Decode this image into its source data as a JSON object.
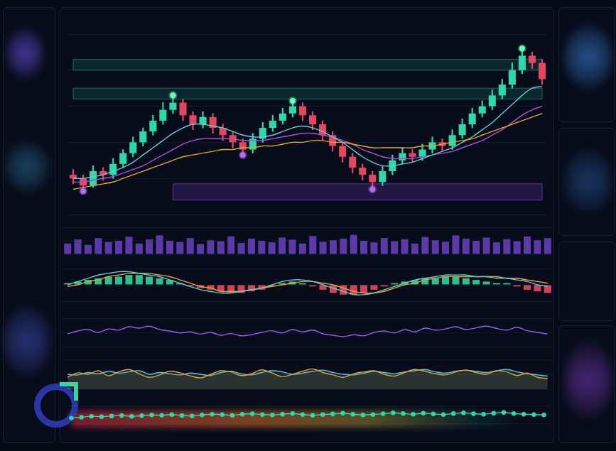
{
  "chart_data": [
    {
      "type": "candlestick",
      "tick_labels": false,
      "grid": true,
      "ylim": [
        0,
        100
      ],
      "yticks": [
        0,
        20,
        40,
        60,
        80,
        100
      ],
      "open": [
        22,
        20,
        16,
        24,
        22,
        28,
        34,
        40,
        46,
        52,
        58,
        62,
        55,
        50,
        54,
        48,
        44,
        40,
        36,
        42,
        48,
        52,
        56,
        60,
        55,
        50,
        44,
        38,
        32,
        26,
        22,
        18,
        24,
        30,
        34,
        32,
        36,
        40,
        38,
        44,
        50,
        56,
        60,
        66,
        72,
        80,
        88,
        84
      ],
      "high": [
        25,
        22,
        27,
        26,
        31,
        36,
        43,
        48,
        55,
        62,
        66,
        64,
        57,
        57,
        56,
        50,
        46,
        42,
        45,
        51,
        55,
        59,
        63,
        62,
        57,
        52,
        46,
        40,
        34,
        28,
        24,
        27,
        33,
        37,
        36,
        39,
        43,
        42,
        47,
        53,
        59,
        63,
        69,
        75,
        84,
        92,
        90,
        86
      ],
      "low": [
        17,
        13,
        15,
        19,
        20,
        26,
        32,
        38,
        44,
        50,
        56,
        52,
        47,
        48,
        45,
        41,
        37,
        33,
        34,
        40,
        46,
        50,
        54,
        52,
        47,
        41,
        35,
        29,
        23,
        19,
        14,
        16,
        22,
        28,
        29,
        30,
        34,
        35,
        36,
        42,
        48,
        54,
        58,
        64,
        70,
        78,
        81,
        72
      ],
      "close": [
        20,
        16,
        24,
        22,
        28,
        34,
        40,
        46,
        52,
        58,
        62,
        55,
        50,
        54,
        48,
        44,
        40,
        36,
        42,
        48,
        52,
        56,
        60,
        55,
        50,
        44,
        38,
        32,
        26,
        22,
        18,
        24,
        30,
        34,
        32,
        36,
        40,
        38,
        44,
        50,
        56,
        60,
        66,
        72,
        80,
        88,
        84,
        75
      ],
      "colors": [
        "#e2475f",
        "#e2475f",
        "#2fd8a8",
        "#e2475f",
        "#2fd8a8",
        "#2fd8a8",
        "#2fd8a8",
        "#2fd8a8",
        "#2fd8a8",
        "#2fd8a8",
        "#2fd8a8",
        "#e2475f",
        "#e2475f",
        "#2fd8a8",
        "#e2475f",
        "#e2475f",
        "#e2475f",
        "#e2475f",
        "#2fd8a8",
        "#2fd8a8",
        "#2fd8a8",
        "#2fd8a8",
        "#2fd8a8",
        "#e2475f",
        "#e2475f",
        "#e2475f",
        "#e2475f",
        "#e2475f",
        "#e2475f",
        "#e2475f",
        "#e2475f",
        "#2fd8a8",
        "#2fd8a8",
        "#2fd8a8",
        "#e2475f",
        "#2fd8a8",
        "#2fd8a8",
        "#e2475f",
        "#2fd8a8",
        "#2fd8a8",
        "#2fd8a8",
        "#2fd8a8",
        "#2fd8a8",
        "#2fd8a8",
        "#2fd8a8",
        "#2fd8a8",
        "#e2475f",
        "#e2475f"
      ],
      "zones": [
        {
          "x": [
            0,
            47
          ],
          "y": [
            80,
            86
          ],
          "color": "#1d8a78"
        },
        {
          "x": [
            0,
            47
          ],
          "y": [
            64,
            70
          ],
          "color": "#1d8a78"
        },
        {
          "x": [
            10,
            47
          ],
          "y": [
            8,
            17
          ],
          "color": "#7b3fd0"
        }
      ],
      "series": [
        {
          "type": "line",
          "color": "#e8a531",
          "values": [
            14,
            15,
            16,
            17,
            18,
            20,
            22,
            24,
            26,
            28,
            30,
            32,
            33,
            34,
            35,
            36,
            36,
            37,
            37,
            38,
            38,
            39,
            40,
            40,
            41,
            41,
            40,
            40,
            39,
            38,
            37,
            37,
            37,
            37,
            37,
            38,
            38,
            39,
            40,
            41,
            42,
            44,
            46,
            48,
            50,
            52,
            54,
            56
          ]
        },
        {
          "type": "line",
          "color": "#5fd0d8",
          "values": [
            20,
            20,
            21,
            22,
            24,
            26,
            29,
            33,
            37,
            41,
            45,
            48,
            50,
            50,
            49,
            48,
            46,
            44,
            43,
            43,
            44,
            46,
            48,
            49,
            48,
            46,
            43,
            40,
            36,
            32,
            29,
            27,
            27,
            28,
            29,
            31,
            33,
            35,
            37,
            40,
            43,
            47,
            51,
            56,
            61,
            66,
            70,
            71
          ]
        },
        {
          "type": "line",
          "color": "#b04fd6",
          "values": [
            18,
            18,
            19,
            20,
            21,
            23,
            25,
            27,
            30,
            33,
            36,
            39,
            41,
            42,
            42,
            42,
            42,
            41,
            41,
            41,
            42,
            43,
            44,
            45,
            45,
            44,
            43,
            41,
            39,
            36,
            34,
            32,
            31,
            31,
            31,
            32,
            33,
            34,
            35,
            37,
            39,
            41,
            44,
            47,
            51,
            55,
            58,
            60
          ]
        },
        {
          "type": "scatter",
          "color": "#6dffb8",
          "values": [
            null,
            null,
            null,
            null,
            null,
            null,
            null,
            null,
            null,
            null,
            66,
            null,
            null,
            null,
            null,
            null,
            null,
            null,
            null,
            null,
            null,
            null,
            63,
            null,
            null,
            null,
            null,
            null,
            null,
            null,
            null,
            null,
            null,
            null,
            null,
            null,
            null,
            null,
            null,
            null,
            null,
            null,
            null,
            null,
            null,
            92,
            null,
            null
          ]
        },
        {
          "type": "scatter",
          "color": "#b86bff",
          "values": [
            null,
            13,
            null,
            null,
            null,
            null,
            null,
            null,
            null,
            null,
            null,
            null,
            null,
            null,
            null,
            null,
            null,
            33,
            null,
            null,
            null,
            null,
            null,
            null,
            null,
            null,
            null,
            null,
            null,
            null,
            14,
            null,
            null,
            null,
            null,
            null,
            null,
            null,
            null,
            null,
            null,
            null,
            null,
            null,
            null,
            null,
            null,
            null
          ]
        }
      ]
    },
    {
      "type": "bar",
      "tick_labels": false,
      "grid": true,
      "ylim": [
        0,
        100
      ],
      "yticks": [
        0,
        50,
        100
      ],
      "color": "#5b3aa8",
      "values": [
        40,
        55,
        35,
        60,
        45,
        50,
        65,
        40,
        55,
        70,
        50,
        45,
        60,
        38,
        52,
        48,
        66,
        42,
        58,
        50,
        44,
        62,
        54,
        40,
        68,
        46,
        52,
        58,
        72,
        50,
        44,
        60,
        48,
        56,
        40,
        64,
        52,
        46,
        70,
        58,
        50,
        62,
        44,
        56,
        48,
        66,
        52,
        60
      ]
    },
    {
      "type": "bar",
      "tick_labels": false,
      "grid": true,
      "ylim": [
        -10,
        10
      ],
      "yticks": [
        -10,
        0,
        10
      ],
      "series": [
        {
          "type": "bar",
          "color": "#2fbf8f",
          "values": [
            1,
            2,
            3,
            4,
            5,
            5,
            6,
            6,
            5,
            4,
            3,
            1,
            null,
            null,
            null,
            null,
            null,
            null,
            null,
            null,
            null,
            1,
            2,
            1,
            null,
            null,
            null,
            null,
            null,
            null,
            null,
            null,
            1,
            2,
            3,
            4,
            4,
            5,
            5,
            4,
            3,
            2,
            1,
            1,
            null,
            null,
            null,
            null
          ]
        },
        {
          "type": "bar",
          "color": "#d8405a",
          "values": [
            null,
            null,
            null,
            null,
            null,
            null,
            null,
            null,
            null,
            null,
            null,
            null,
            -1,
            -2,
            -3,
            -4,
            -5,
            -5,
            -4,
            -3,
            -1,
            null,
            null,
            null,
            -1,
            -3,
            -5,
            -6,
            -6,
            -5,
            -3,
            -1,
            null,
            null,
            null,
            null,
            null,
            null,
            null,
            null,
            null,
            null,
            null,
            null,
            -1,
            -3,
            -4,
            -5
          ]
        },
        {
          "type": "line",
          "color": "#5fd0d8",
          "values": [
            0,
            2,
            4,
            6,
            7,
            8,
            8,
            7,
            6,
            5,
            3,
            1,
            -1,
            -3,
            -4,
            -5,
            -5,
            -4,
            -3,
            -2,
            0,
            2,
            3,
            3,
            2,
            0,
            -2,
            -4,
            -6,
            -6,
            -5,
            -3,
            -1,
            1,
            3,
            4,
            5,
            6,
            6,
            6,
            5,
            5,
            4,
            4,
            3,
            2,
            0,
            -1
          ]
        },
        {
          "type": "line",
          "color": "#e8a531",
          "values": [
            -1,
            0,
            2,
            3,
            5,
            6,
            7,
            7,
            7,
            6,
            5,
            3,
            1,
            -1,
            -2,
            -4,
            -4,
            -4,
            -3,
            -2,
            -1,
            0,
            1,
            2,
            2,
            1,
            0,
            -2,
            -4,
            -5,
            -5,
            -4,
            -2,
            0,
            1,
            3,
            4,
            5,
            5,
            5,
            5,
            5,
            5,
            4,
            4,
            3,
            2,
            1
          ]
        }
      ]
    },
    {
      "type": "line",
      "tick_labels": false,
      "grid": true,
      "ylim": [
        0,
        100
      ],
      "yticks": [
        0,
        50,
        100
      ],
      "series": [
        {
          "type": "line",
          "color": "#9a5cf0",
          "values": [
            45,
            55,
            60,
            50,
            62,
            58,
            70,
            65,
            72,
            60,
            55,
            48,
            52,
            44,
            50,
            40,
            46,
            38,
            42,
            50,
            56,
            48,
            60,
            52,
            58,
            45,
            40,
            35,
            42,
            38,
            50,
            55,
            48,
            60,
            52,
            65,
            58,
            62,
            70,
            60,
            66,
            72,
            64,
            58,
            68,
            56,
            50,
            44
          ]
        }
      ]
    },
    {
      "type": "area",
      "tick_labels": false,
      "grid": true,
      "ylim": [
        0,
        100
      ],
      "yticks": [
        0,
        50,
        100
      ],
      "series": [
        {
          "type": "area",
          "color": "#e8a531",
          "values": [
            40,
            55,
            50,
            62,
            45,
            58,
            66,
            52,
            40,
            48,
            60,
            55,
            45,
            38,
            50,
            62,
            58,
            46,
            52,
            65,
            55,
            42,
            50,
            60,
            68,
            56,
            48,
            40,
            52,
            58,
            62,
            50,
            44,
            56,
            66,
            60,
            52,
            48,
            58,
            64,
            56,
            50,
            62,
            58,
            46,
            54,
            40,
            36
          ]
        },
        {
          "type": "area",
          "color": "#5bc8e0",
          "values": [
            50,
            48,
            56,
            52,
            60,
            54,
            58,
            62,
            50,
            56,
            52,
            48,
            54,
            50,
            46,
            56,
            60,
            52,
            48,
            56,
            62,
            58,
            50,
            54,
            60,
            64,
            56,
            50,
            48,
            54,
            60,
            56,
            52,
            58,
            62,
            66,
            58,
            54,
            60,
            64,
            60,
            56,
            62,
            66,
            58,
            52,
            48,
            44
          ]
        }
      ]
    },
    {
      "type": "line",
      "tick_labels": false,
      "grid": true,
      "ylim": [
        0,
        100
      ],
      "yticks": [
        0,
        50,
        100
      ],
      "series": [
        {
          "type": "line",
          "color": "#2fd8a8",
          "marker": "circle",
          "values": [
            30,
            35,
            40,
            38,
            42,
            45,
            40,
            44,
            48,
            46,
            50,
            45,
            42,
            48,
            52,
            50,
            46,
            52,
            55,
            50,
            48,
            52,
            56,
            50,
            46,
            50,
            54,
            58,
            52,
            48,
            50,
            55,
            60,
            56,
            52,
            58,
            54,
            50,
            56,
            60,
            55,
            52,
            58,
            62,
            56,
            52,
            50,
            48
          ]
        }
      ]
    }
  ]
}
